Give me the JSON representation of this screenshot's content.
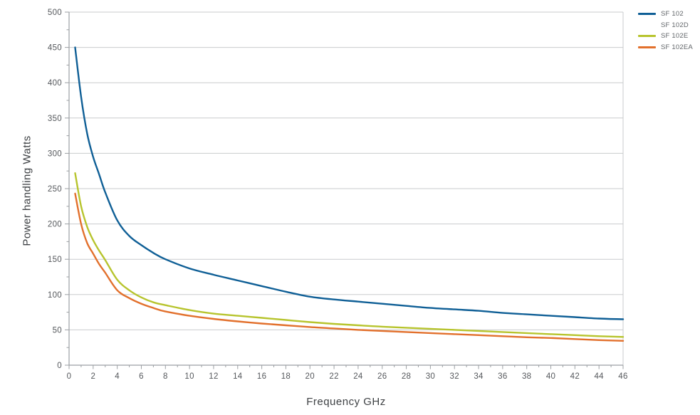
{
  "chart_data": {
    "type": "line",
    "title": "",
    "xlabel": "Frequency GHz",
    "ylabel": "Power handling Watts",
    "xlim": [
      0,
      46
    ],
    "ylim": [
      0,
      500
    ],
    "x_tick_step": 2,
    "x_minor_tick_step": 1,
    "y_tick_step": 50,
    "y_minor_tick_step": 25,
    "grid": "horizontal-only",
    "legend_position": "top-right-outside",
    "colors": {
      "grid": "#c9cbcd",
      "axis": "#9b9fa3",
      "tick_label": "#55585c",
      "axis_title": "#3e4144",
      "legend_text": "#63676b"
    },
    "x": [
      0.5,
      1,
      1.5,
      2,
      2.5,
      3,
      4,
      5,
      6,
      7,
      8,
      10,
      12,
      14,
      16,
      18,
      20,
      22,
      24,
      26,
      28,
      30,
      32,
      34,
      36,
      38,
      40,
      42,
      44,
      46
    ],
    "series": [
      {
        "name": "SF 102",
        "color": "#0f5f96",
        "values": [
          450,
          380,
          328,
          295,
          270,
          245,
          205,
          183,
          170,
          159,
          150,
          137,
          128,
          120,
          112,
          104,
          97,
          93,
          90,
          87,
          84,
          81,
          79,
          77,
          74,
          72,
          70,
          68,
          66,
          65
        ]
      },
      {
        "name": "SF 102D",
        "color": "#ffffff",
        "values": []
      },
      {
        "name": "SF 102E",
        "color": "#b7c42d",
        "values": [
          272,
          225,
          196,
          177,
          162,
          149,
          121,
          106,
          96,
          89,
          85,
          78,
          73,
          70,
          67,
          64,
          61,
          58.5,
          56.5,
          54.5,
          53,
          51.5,
          50,
          48.5,
          47,
          45.5,
          44,
          42.5,
          41,
          40
        ]
      },
      {
        "name": "SF 102EA",
        "color": "#e2702c",
        "values": [
          243,
          200,
          173,
          158,
          143,
          131,
          106,
          95,
          87,
          81,
          76,
          70,
          65.5,
          62,
          59,
          56.5,
          54,
          52,
          50,
          48.5,
          47,
          45.5,
          44,
          42.5,
          41,
          39.5,
          38.5,
          37,
          35.5,
          34.5
        ]
      }
    ]
  }
}
